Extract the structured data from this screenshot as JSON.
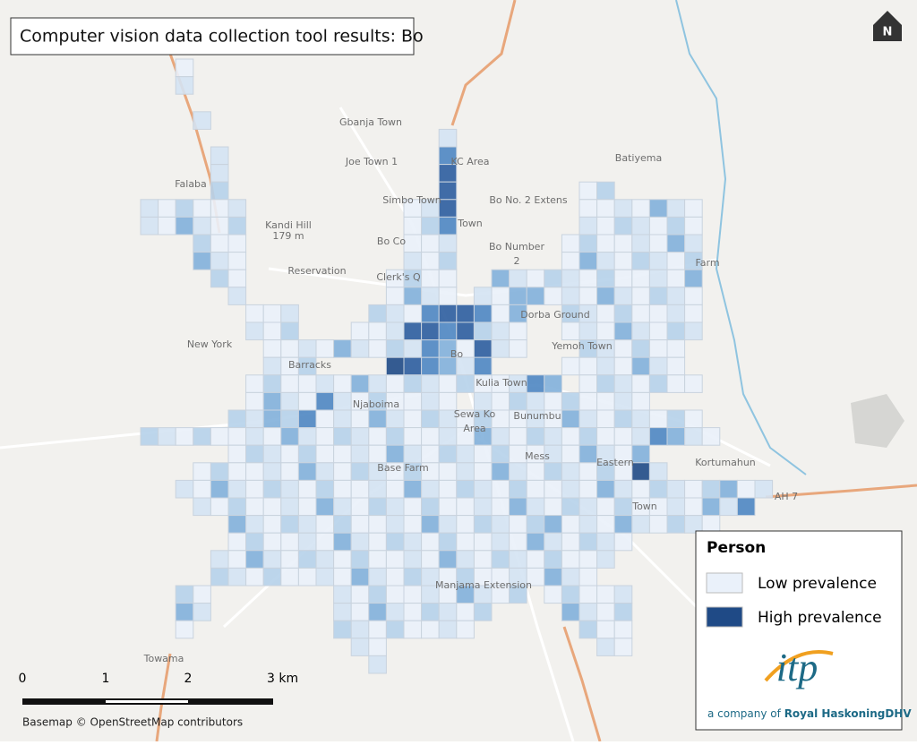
{
  "title": "Computer vision data collection tool results: Bo",
  "places": [
    "Gbanja Town",
    "Joe Town 1",
    "KC Area",
    "Simbo Town",
    "Bo No. 2 Extens",
    "Town",
    "Batiyema",
    "Falaba",
    "Kandi Hill",
    "179 m",
    "Bo Co",
    "Bo Number",
    "2",
    "Reservation",
    "Clerk's Q",
    "Farm",
    "Dorba Ground",
    "New York",
    "Yemoh Town",
    "Barracks",
    "Bo",
    "Kulia Town",
    "Njaboima",
    "Bunumbu",
    "Sewa Ko",
    "Area",
    "Mess",
    "Eastern",
    "Kortumahun",
    "Base Farm",
    "Town",
    "Manjama Extension",
    "Towama",
    "AH 7"
  ],
  "legend": {
    "title": "Person",
    "low": "Low prevalence",
    "high": "High prevalence"
  },
  "scale_bar": {
    "labels": [
      "0",
      "1",
      "2",
      "3 km"
    ]
  },
  "attribution": "Basemap © OpenStreetMap contributors",
  "logo": {
    "mark": "itp",
    "prefix": "a company of",
    "company": "Royal HaskoningDHV"
  },
  "north": "N"
}
